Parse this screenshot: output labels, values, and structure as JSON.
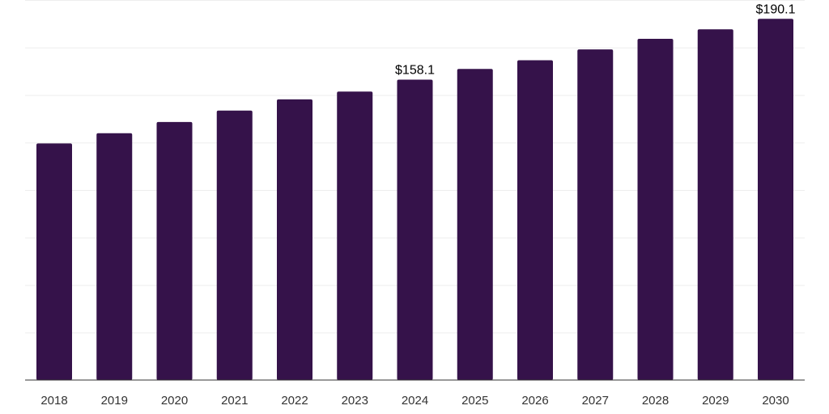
{
  "chart_data": {
    "type": "bar",
    "categories": [
      "2018",
      "2019",
      "2020",
      "2021",
      "2022",
      "2023",
      "2024",
      "2025",
      "2026",
      "2027",
      "2028",
      "2029",
      "2030"
    ],
    "values": [
      124.5,
      129.9,
      135.8,
      141.8,
      147.7,
      151.8,
      158.1,
      163.7,
      168.3,
      174.0,
      179.6,
      184.6,
      190.1
    ],
    "data_labels": [
      {
        "category": "2024",
        "text": "$158.1"
      },
      {
        "category": "2030",
        "text": "$190.1"
      }
    ],
    "title": "",
    "xlabel": "",
    "ylabel": "",
    "ylim": [
      0,
      200
    ],
    "grid": true,
    "colors": {
      "bar": "#35124a",
      "grid": "#eeeeee",
      "axis": "#333333",
      "text": "#333333"
    }
  }
}
